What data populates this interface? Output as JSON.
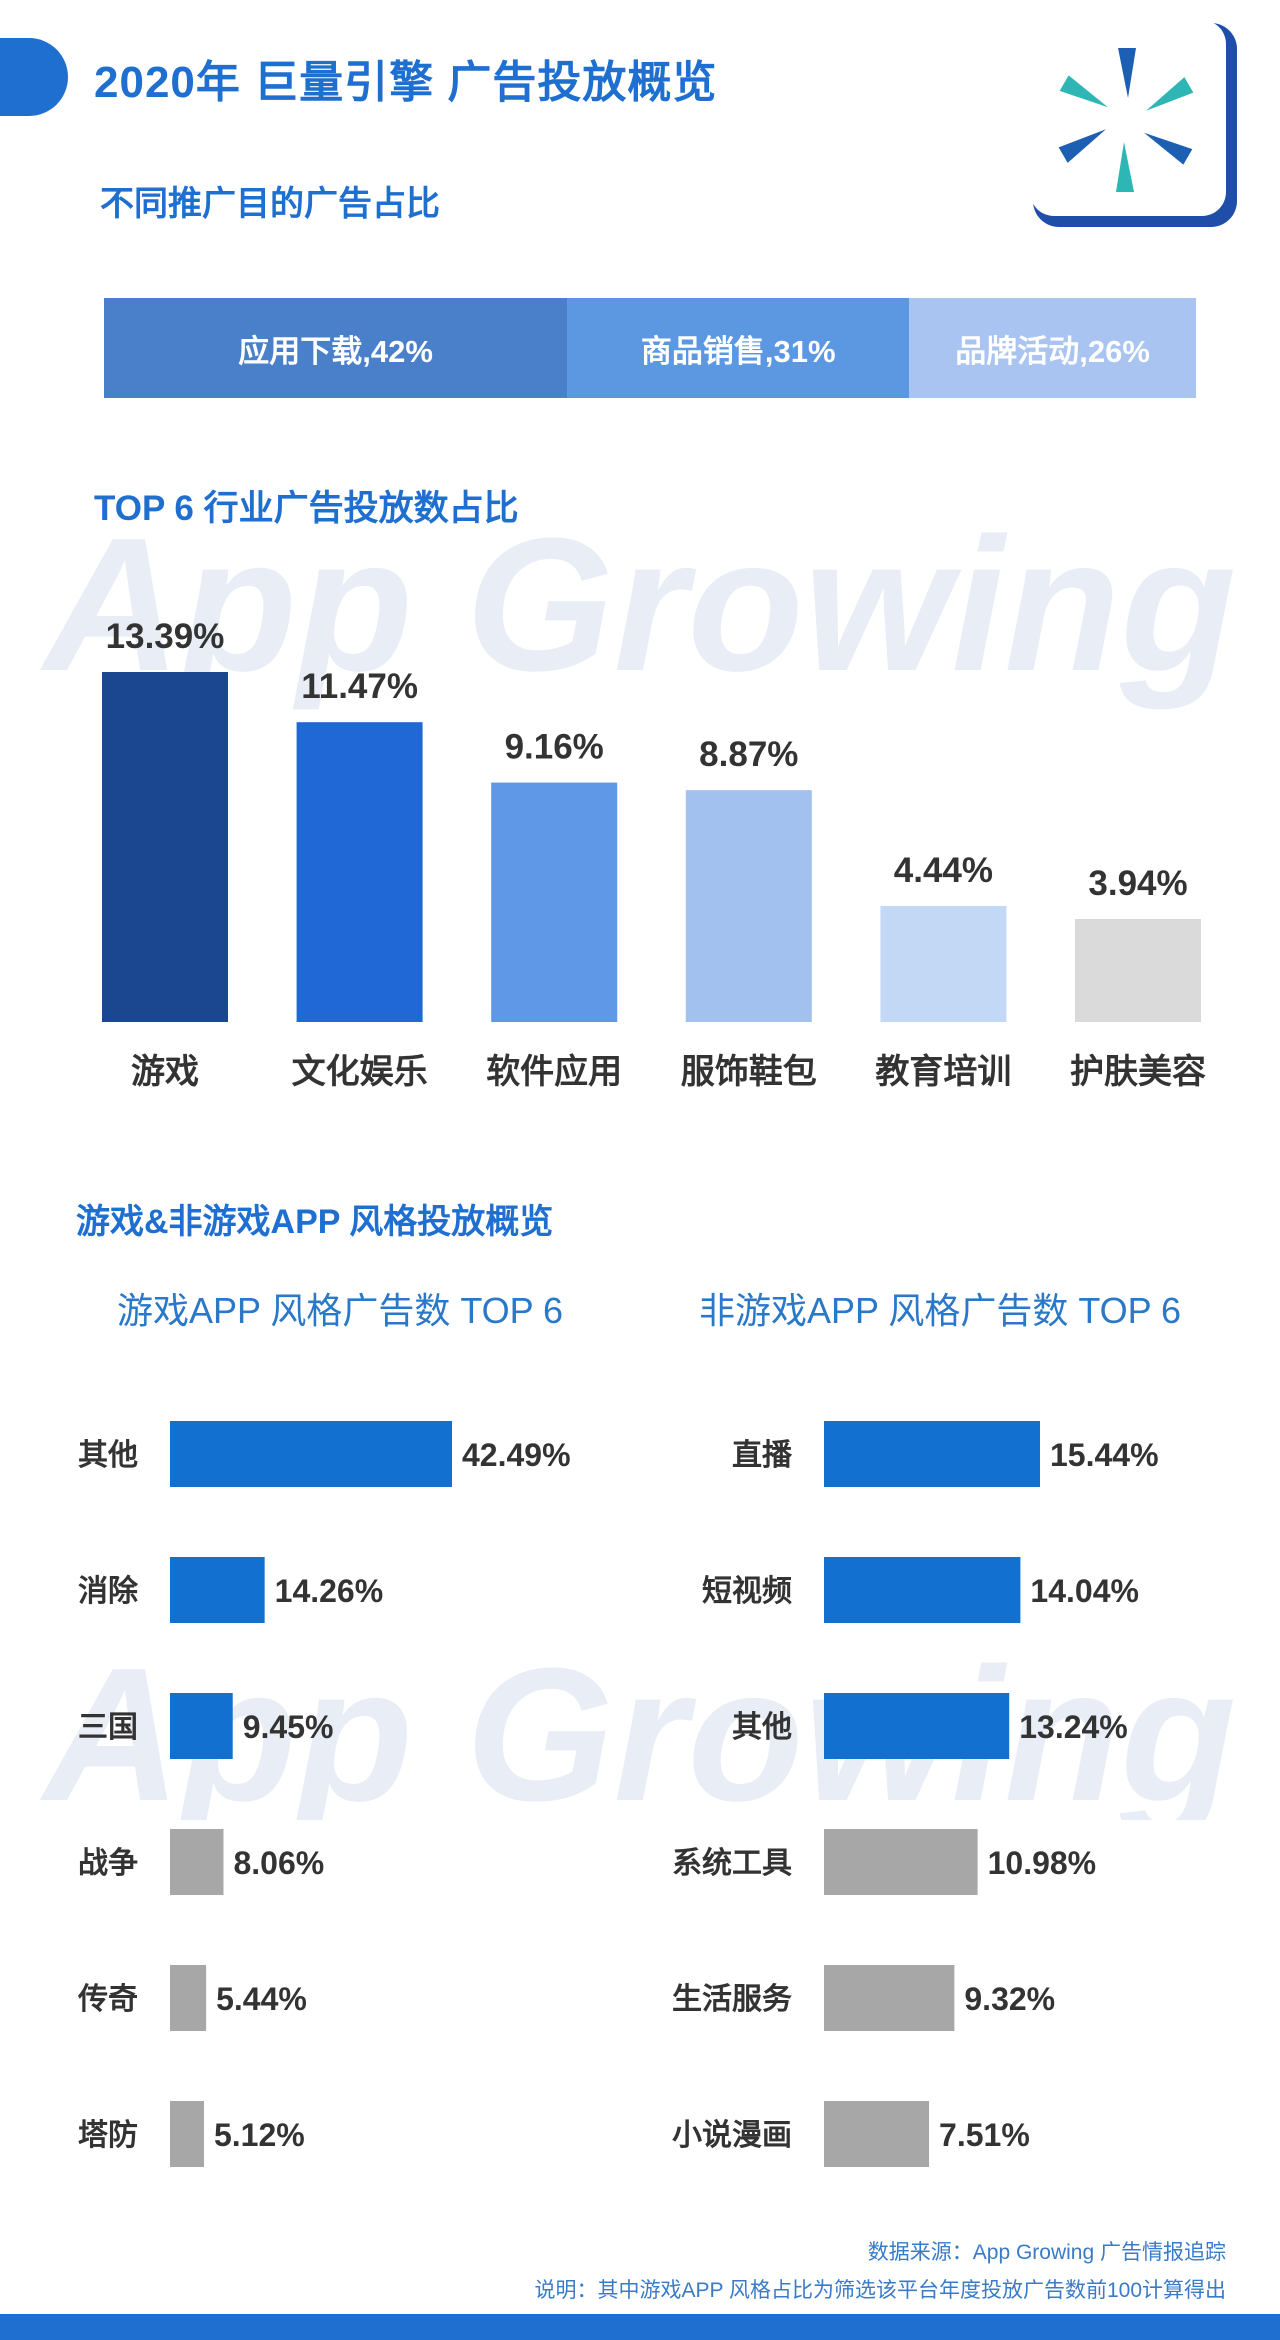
{
  "header": {
    "title": "2020年 巨量引擎 广告投放概览"
  },
  "section_purpose": {
    "title": "不同推广目的广告占比"
  },
  "section_industry": {
    "title": "TOP 6 行业广告投放数占比"
  },
  "section_style": {
    "title": "游戏&非游戏APP 风格投放概览",
    "game_title": "游戏APP 风格广告数 TOP 6",
    "nongame_title": "非游戏APP 风格广告数 TOP 6"
  },
  "watermark": {
    "text": "App Growing"
  },
  "footer": {
    "source": "数据来源：App Growing 广告情报追踪",
    "note": "说明：其中游戏APP 风格占比为筛选该平台年度投放广告数前100计算得出"
  },
  "colors": {
    "accent": "#1f6fd0",
    "stack": [
      "#4a80c9",
      "#5c97e2",
      "#a9c4f1"
    ],
    "industry": [
      "#1a4790",
      "#2068d6",
      "#5f98e6",
      "#a2c1ef",
      "#c3d8f5",
      "#dadada"
    ],
    "hbar_blue": "#1270d0",
    "hbar_gray": "#a7a7a7"
  },
  "chart_data": [
    {
      "type": "bar",
      "orientation": "stacked-horizontal",
      "categories": [
        "应用下载",
        "商品销售",
        "品牌活动"
      ],
      "values": [
        42,
        31,
        26
      ],
      "labels": [
        "应用下载,42%",
        "商品销售,31%",
        "品牌活动,26%"
      ],
      "unit": "%"
    },
    {
      "type": "bar",
      "categories": [
        "游戏",
        "文化娱乐",
        "软件应用",
        "服饰鞋包",
        "教育培训",
        "护肤美容"
      ],
      "values": [
        13.39,
        11.47,
        9.16,
        8.87,
        4.44,
        3.94
      ],
      "labels": [
        "13.39%",
        "11.47%",
        "9.16%",
        "8.87%",
        "4.44%",
        "3.94%"
      ],
      "unit": "%",
      "ylim": [
        0,
        13.39
      ],
      "grid": false
    },
    {
      "type": "bar",
      "orientation": "horizontal",
      "categories": [
        "其他",
        "消除",
        "三国",
        "战争",
        "传奇",
        "塔防"
      ],
      "values": [
        42.49,
        14.26,
        9.45,
        8.06,
        5.44,
        5.12
      ],
      "labels": [
        "42.49%",
        "14.26%",
        "9.45%",
        "8.06%",
        "5.44%",
        "5.12%"
      ],
      "highlight": [
        true,
        true,
        true,
        false,
        false,
        false
      ],
      "unit": "%",
      "xlim": [
        0,
        42.49
      ]
    },
    {
      "type": "bar",
      "orientation": "horizontal",
      "categories": [
        "直播",
        "短视频",
        "其他",
        "系统工具",
        "生活服务",
        "小说漫画"
      ],
      "values": [
        15.44,
        14.04,
        13.24,
        10.98,
        9.32,
        7.51
      ],
      "labels": [
        "15.44%",
        "14.04%",
        "13.24%",
        "10.98%",
        "9.32%",
        "7.51%"
      ],
      "highlight": [
        true,
        true,
        true,
        false,
        false,
        false
      ],
      "unit": "%",
      "xlim": [
        0,
        15.44
      ]
    }
  ]
}
